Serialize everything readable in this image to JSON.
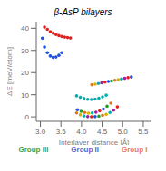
{
  "chart_data": {
    "type": "scatter",
    "title": "β-AsP bilayers",
    "xlabel": "Interlayer distance [Å]",
    "ylabel": "ΔE [meV/atom]",
    "xlim": [
      2.9,
      5.7
    ],
    "ylim": [
      -2,
      43
    ],
    "xticks": [
      {
        "value": 3.0,
        "label": "3.0"
      },
      3.5,
      {
        "value": 4.0,
        "label": "4.0"
      },
      4.5,
      {
        "value": 5.0,
        "label": "5.0"
      },
      5.5
    ],
    "yticks": [
      0,
      10,
      20,
      30,
      40
    ],
    "grid": false,
    "series": [
      {
        "color": "#e02020",
        "x": [
          3.1,
          3.17,
          3.24,
          3.31,
          3.38,
          3.45,
          3.52,
          3.59,
          3.66,
          3.73
        ],
        "values": [
          40.5,
          39.5,
          38.5,
          37.8,
          37.2,
          36.7,
          36.3,
          36.0,
          35.8,
          35.6
        ]
      },
      {
        "color": "#2050e0",
        "x": [
          3.05,
          3.1,
          3.17,
          3.24,
          3.31,
          3.38,
          3.45,
          3.52
        ],
        "values": [
          35.5,
          31.5,
          29.0,
          27.5,
          26.8,
          27.0,
          27.8,
          29.0
        ]
      },
      {
        "colors": [
          "#e07820",
          "#d4b000",
          "#00b0b0",
          "#a020a0",
          "#e02020",
          "#2050e0",
          "#20a020",
          "#e07820",
          "#d4b000",
          "#00b0b0",
          "#a020a0",
          "#e02020",
          "#2050e0"
        ],
        "x": [
          4.25,
          4.33,
          4.41,
          4.49,
          4.57,
          4.65,
          4.73,
          4.81,
          4.89,
          4.97,
          5.05,
          5.13,
          5.21
        ],
        "values": [
          14.5,
          14.8,
          15.1,
          15.4,
          15.7,
          16.0,
          16.2,
          16.5,
          16.8,
          17.1,
          17.4,
          17.7,
          18.0
        ]
      },
      {
        "colors": [
          "#e07820",
          "#d4b000",
          "#00b0b0",
          "#a020a0",
          "#e02020",
          "#2050e0",
          "#20a020",
          "#e07820",
          "#d4b000",
          "#00b0b0",
          "#a020a0",
          "#e02020"
        ],
        "x": [
          3.88,
          3.97,
          4.06,
          4.15,
          4.24,
          4.33,
          4.42,
          4.51,
          4.6,
          4.69,
          4.78,
          4.87
        ],
        "values": [
          1.8,
          0.9,
          0.4,
          0.1,
          0.05,
          0.1,
          0.3,
          0.7,
          1.2,
          2.0,
          3.0,
          4.5
        ]
      },
      {
        "colors": [
          "#2050e0",
          "#20a020",
          "#e07820",
          "#d4b000",
          "#00b0b0",
          "#a020a0",
          "#e02020",
          "#2050e0",
          "#20a020",
          "#e07820"
        ],
        "x": [
          3.9,
          3.99,
          4.08,
          4.17,
          4.26,
          4.35,
          4.44,
          4.53,
          4.62,
          4.71
        ],
        "values": [
          3.2,
          2.5,
          2.0,
          1.7,
          1.8,
          2.1,
          2.7,
          3.5,
          4.8,
          6.2
        ]
      },
      {
        "colors": [
          "#00b0b0",
          "#00b0b0",
          "#00b0b0",
          "#00b0b0",
          "#00b0b0",
          "#00b0b0",
          "#00b0b0",
          "#00b0b0",
          "#00b0b0"
        ],
        "x": [
          3.88,
          3.97,
          4.06,
          4.15,
          4.24,
          4.33,
          4.42,
          4.51,
          4.6
        ],
        "values": [
          9.5,
          8.8,
          8.3,
          7.9,
          7.8,
          8.0,
          8.4,
          9.0,
          9.8
        ]
      }
    ],
    "annotations": [
      {
        "text": "Group III",
        "color": "#40a040"
      },
      {
        "text": "Group II",
        "color": "#6060d0"
      },
      {
        "text": "Group I",
        "color": "#f07070"
      }
    ]
  }
}
